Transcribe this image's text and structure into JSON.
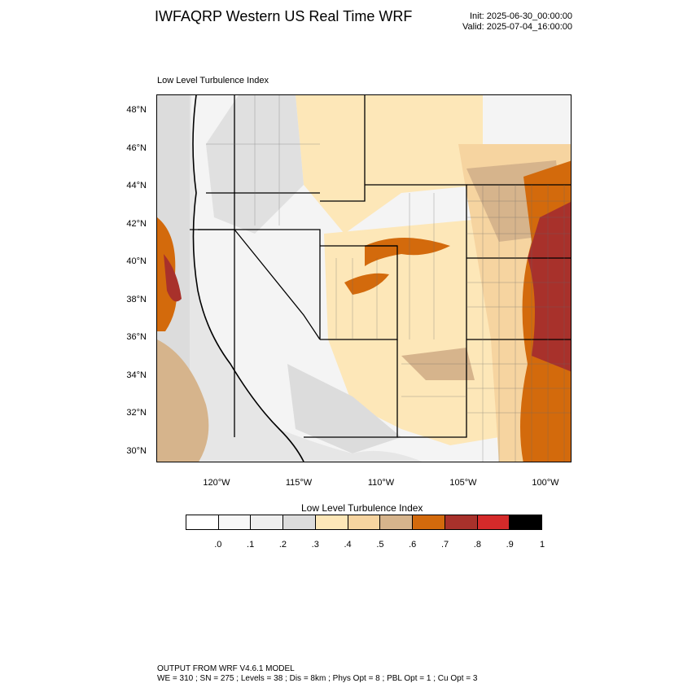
{
  "header": {
    "title": "IWFAQRP Western US Real Time WRF",
    "init": "Init: 2025-06-30_00:00:00",
    "valid": "Valid: 2025-07-04_16:00:00"
  },
  "map": {
    "label": "Low Level Turbulence Index",
    "lat_labels": [
      "48°N",
      "46°N",
      "44°N",
      "42°N",
      "40°N",
      "38°N",
      "36°N",
      "34°N",
      "32°N",
      "30°N"
    ],
    "lon_labels": [
      "120°W",
      "115°W",
      "110°W",
      "105°W",
      "100°W"
    ],
    "extent": {
      "lon_min": -123.6,
      "lon_max": -98.3,
      "lat_min": 29.4,
      "lat_max": 48.9
    }
  },
  "colorbar": {
    "title": "Low Level Turbulence Index",
    "colors": [
      "#ffffff",
      "#f7f7f7",
      "#efefef",
      "#dcdcdc",
      "#fde7b8",
      "#f6d4a0",
      "#d6b48c",
      "#d36a0c",
      "#a8312b",
      "#d42a2a",
      "#000000"
    ],
    "ticks": [
      ".0",
      ".1",
      ".2",
      ".3",
      ".4",
      ".5",
      ".6",
      ".7",
      ".8",
      ".9",
      "1"
    ]
  },
  "footer": {
    "line1": "OUTPUT FROM WRF V4.6.1 MODEL",
    "line2": "WE = 310 ; SN = 275 ; Levels = 38 ; Dis = 8km ; Phys Opt = 8 ; PBL Opt = 1 ; Cu Opt = 3"
  }
}
